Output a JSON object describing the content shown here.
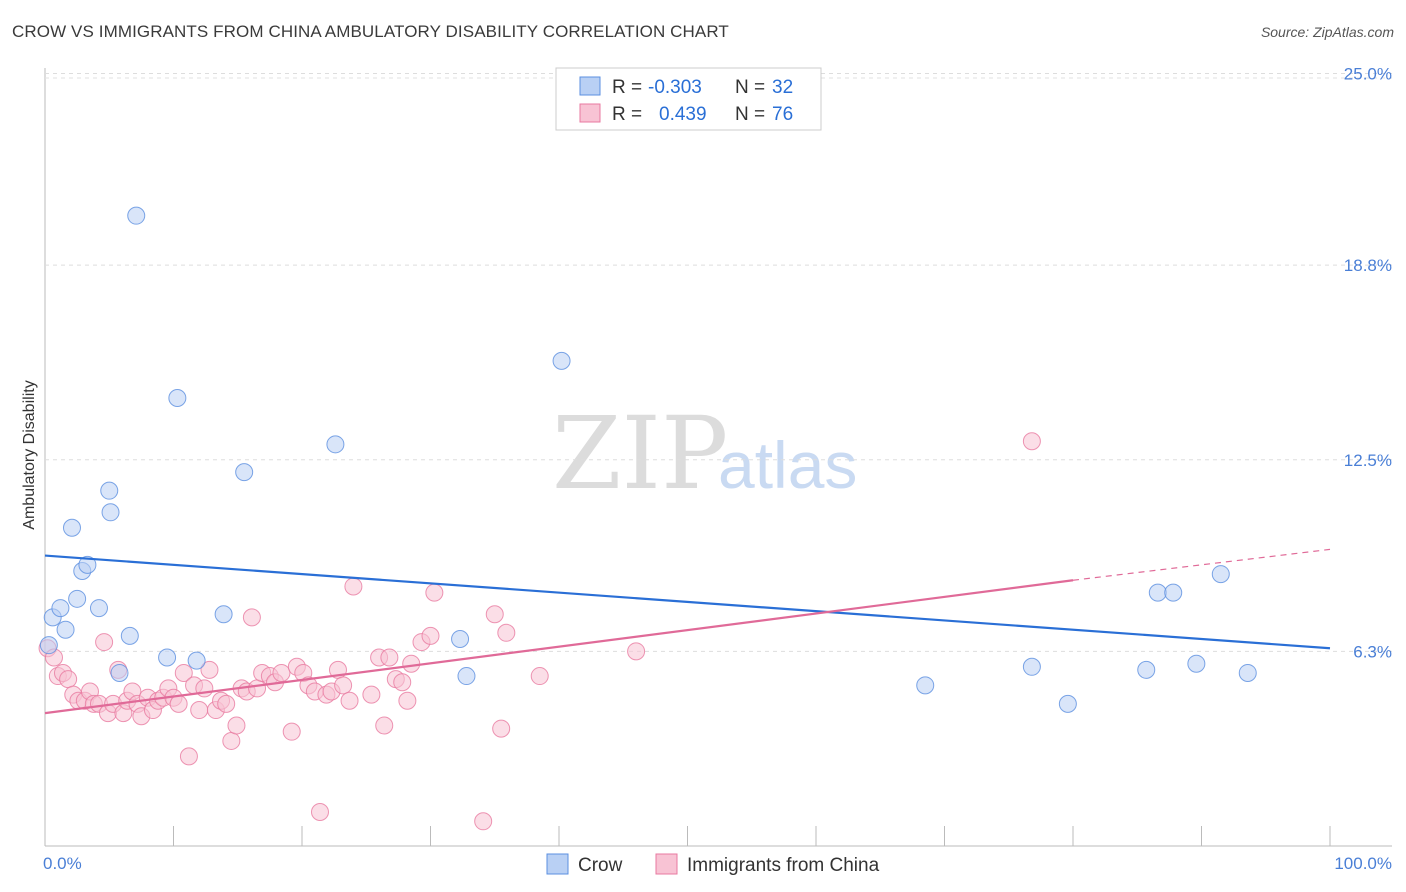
{
  "title": "CROW VS IMMIGRANTS FROM CHINA AMBULATORY DISABILITY CORRELATION CHART",
  "source": "Source: ZipAtlas.com",
  "watermark": {
    "zip": "ZIP",
    "atlas": "atlas"
  },
  "colors": {
    "crow": "#5b8fe0",
    "crow_fill": "#b9d0f4",
    "crow_line": "#2a6fd6",
    "china": "#e87aa0",
    "china_fill": "#f8c3d4",
    "china_line": "#e06a98",
    "tick_text": "#4a7fd6",
    "grid": "#dddddd"
  },
  "legend": {
    "rows": [
      {
        "r_label": "R = ",
        "r_value": "-0.303",
        "n_label": "N = ",
        "n_value": "32"
      },
      {
        "r_label": "R = ",
        "r_value": "0.439",
        "n_label": "N = ",
        "n_value": "76"
      }
    ]
  },
  "bottom_legend": [
    "Crow",
    "Immigrants from China"
  ],
  "chart_data": {
    "type": "scatter",
    "title": "CROW VS IMMIGRANTS FROM CHINA AMBULATORY DISABILITY CORRELATION CHART",
    "xlabel": "",
    "ylabel": "Ambulatory Disability",
    "x_tick_labels": [
      "0.0%",
      "100.0%"
    ],
    "y_tick_labels": [
      "25.0%",
      "18.8%",
      "12.5%",
      "6.3%"
    ],
    "y_tick_values": [
      25.0,
      18.8,
      12.5,
      6.3
    ],
    "xlim": [
      0,
      100
    ],
    "ylim": [
      0,
      25.6
    ],
    "grid": true,
    "legend_position": "top-center",
    "series": [
      {
        "name": "Crow",
        "r": -0.303,
        "n": 32,
        "points": [
          [
            0.3,
            6.5
          ],
          [
            0.6,
            7.4
          ],
          [
            1.2,
            7.7
          ],
          [
            1.6,
            7.0
          ],
          [
            2.1,
            10.3
          ],
          [
            2.5,
            8.0
          ],
          [
            2.9,
            8.9
          ],
          [
            3.3,
            9.1
          ],
          [
            4.2,
            7.7
          ],
          [
            5.0,
            11.5
          ],
          [
            5.1,
            10.8
          ],
          [
            5.8,
            5.6
          ],
          [
            6.6,
            6.8
          ],
          [
            7.1,
            20.4
          ],
          [
            9.5,
            6.1
          ],
          [
            10.3,
            14.5
          ],
          [
            11.8,
            6.0
          ],
          [
            13.9,
            7.5
          ],
          [
            15.5,
            12.1
          ],
          [
            22.6,
            13.0
          ],
          [
            32.3,
            6.7
          ],
          [
            32.8,
            5.5
          ],
          [
            40.2,
            15.7
          ],
          [
            68.5,
            5.2
          ],
          [
            76.8,
            5.8
          ],
          [
            79.6,
            4.6
          ],
          [
            85.7,
            5.7
          ],
          [
            86.6,
            8.2
          ],
          [
            87.8,
            8.2
          ],
          [
            89.6,
            5.9
          ],
          [
            91.5,
            8.8
          ],
          [
            93.6,
            5.6
          ]
        ],
        "trend": {
          "x": [
            0,
            100
          ],
          "y": [
            9.4,
            6.4
          ]
        }
      },
      {
        "name": "Immigrants from China",
        "r": 0.439,
        "n": 76,
        "points": [
          [
            0.2,
            6.4
          ],
          [
            0.7,
            6.1
          ],
          [
            1.0,
            5.5
          ],
          [
            1.4,
            5.6
          ],
          [
            1.8,
            5.4
          ],
          [
            2.2,
            4.9
          ],
          [
            2.6,
            4.7
          ],
          [
            3.1,
            4.7
          ],
          [
            3.5,
            5.0
          ],
          [
            3.8,
            4.6
          ],
          [
            4.2,
            4.6
          ],
          [
            4.6,
            6.6
          ],
          [
            4.9,
            4.3
          ],
          [
            5.3,
            4.6
          ],
          [
            5.7,
            5.7
          ],
          [
            6.1,
            4.3
          ],
          [
            6.4,
            4.7
          ],
          [
            6.8,
            5.0
          ],
          [
            7.2,
            4.6
          ],
          [
            7.5,
            4.2
          ],
          [
            8.0,
            4.8
          ],
          [
            8.4,
            4.4
          ],
          [
            8.8,
            4.7
          ],
          [
            9.2,
            4.8
          ],
          [
            9.6,
            5.1
          ],
          [
            10.0,
            4.8
          ],
          [
            10.4,
            4.6
          ],
          [
            10.8,
            5.6
          ],
          [
            11.2,
            2.9
          ],
          [
            11.6,
            5.2
          ],
          [
            12.0,
            4.4
          ],
          [
            12.4,
            5.1
          ],
          [
            12.8,
            5.7
          ],
          [
            13.3,
            4.4
          ],
          [
            13.7,
            4.7
          ],
          [
            14.1,
            4.6
          ],
          [
            14.5,
            3.4
          ],
          [
            14.9,
            3.9
          ],
          [
            15.3,
            5.1
          ],
          [
            15.7,
            5.0
          ],
          [
            16.1,
            7.4
          ],
          [
            16.5,
            5.1
          ],
          [
            16.9,
            5.6
          ],
          [
            17.5,
            5.5
          ],
          [
            17.9,
            5.3
          ],
          [
            18.4,
            5.6
          ],
          [
            19.2,
            3.7
          ],
          [
            19.6,
            5.8
          ],
          [
            20.1,
            5.6
          ],
          [
            20.5,
            5.2
          ],
          [
            21.0,
            5.0
          ],
          [
            21.4,
            1.1
          ],
          [
            21.9,
            4.9
          ],
          [
            22.3,
            5.0
          ],
          [
            22.8,
            5.7
          ],
          [
            23.2,
            5.2
          ],
          [
            23.7,
            4.7
          ],
          [
            24.0,
            8.4
          ],
          [
            25.4,
            4.9
          ],
          [
            26.0,
            6.1
          ],
          [
            26.4,
            3.9
          ],
          [
            26.8,
            6.1
          ],
          [
            27.3,
            5.4
          ],
          [
            27.8,
            5.3
          ],
          [
            28.2,
            4.7
          ],
          [
            28.5,
            5.9
          ],
          [
            29.3,
            6.6
          ],
          [
            30.0,
            6.8
          ],
          [
            30.3,
            8.2
          ],
          [
            34.1,
            0.8
          ],
          [
            35.0,
            7.5
          ],
          [
            35.5,
            3.8
          ],
          [
            35.9,
            6.9
          ],
          [
            38.5,
            5.5
          ],
          [
            46.0,
            6.3
          ],
          [
            76.8,
            13.1
          ]
        ],
        "trend": {
          "x": [
            0,
            80,
            100
          ],
          "y": [
            4.3,
            8.6,
            9.6
          ]
        }
      }
    ]
  }
}
